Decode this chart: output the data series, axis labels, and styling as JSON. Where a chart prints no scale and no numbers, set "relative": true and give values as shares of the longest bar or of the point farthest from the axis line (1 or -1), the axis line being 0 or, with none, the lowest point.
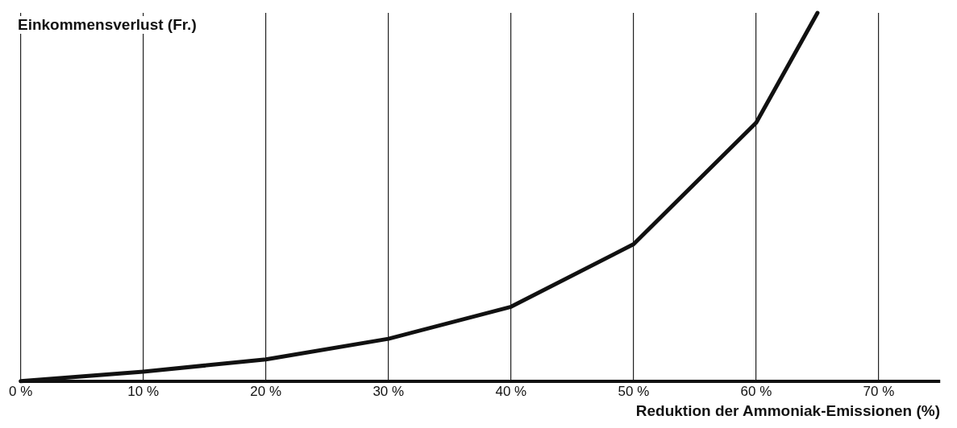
{
  "chart_data": {
    "type": "line",
    "ylabel": "Einkommensverlust (Fr.)",
    "xlabel": "Reduktion der Ammoniak-Emissionen (%)",
    "relative": true,
    "x": [
      0,
      10,
      20,
      30,
      40,
      50,
      60,
      65
    ],
    "series": [
      {
        "color": "#111111",
        "values": [
          0,
          0.026,
          0.059,
          0.115,
          0.202,
          0.372,
          0.702,
          1
        ]
      }
    ],
    "xlim": [
      0,
      75
    ],
    "xticks": [
      {
        "value": 0,
        "label": "0 %"
      },
      {
        "value": 10,
        "label": "10 %"
      },
      {
        "value": 20,
        "label": "20 %"
      },
      {
        "value": 30,
        "label": "30 %"
      },
      {
        "value": 40,
        "label": "40 %"
      },
      {
        "value": 50,
        "label": "50 %"
      },
      {
        "value": 60,
        "label": "60 %"
      },
      {
        "value": 70,
        "label": "70 %"
      }
    ],
    "grid": "x",
    "legend": false,
    "marker": "none",
    "line_style": "solid"
  }
}
